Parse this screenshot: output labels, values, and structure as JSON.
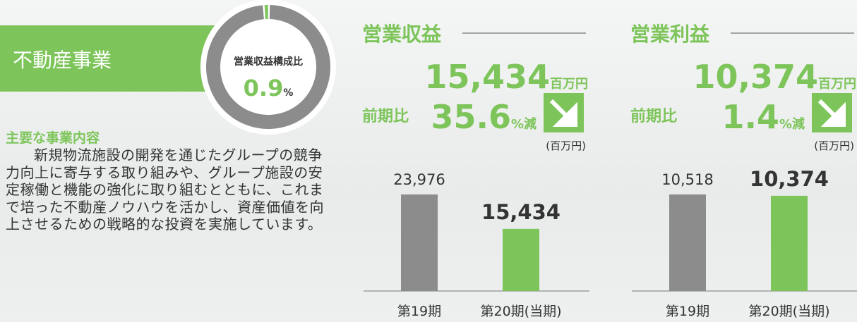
{
  "header": {
    "title": "不動産事業"
  },
  "donut": {
    "title": "営業収益構成比",
    "value": 0.9,
    "unit": "%",
    "color": "#7dc55a",
    "rest_color": "#8c8c8c"
  },
  "description": {
    "heading": "主要な事業内容",
    "text": "新規物流施設の開発を通じたグループの競争力向上に寄与する取り組みや、グループ施設の安定稼働と機能の強化に取り組むとともに、これまで培った不動産ノウハウを活かし、資産価値を向上させるための戦略的な投資を実施しています。"
  },
  "chart_data": [
    {
      "type": "bar",
      "title": "営業収益",
      "headline_unit": "百万円",
      "change_label": "前期比",
      "change": 35.6,
      "change_unit": "%減",
      "unit_label": "(百万円)",
      "categories": [
        "第19期",
        "第20期(当期)"
      ],
      "values": [
        23976,
        15434
      ],
      "value_labels": [
        "23,976",
        "15,434"
      ],
      "colors": [
        "#8c8c8c",
        "#7dc55a"
      ]
    },
    {
      "type": "bar",
      "title": "営業利益",
      "headline_unit": "百万円",
      "change_label": "前期比",
      "change": 1.4,
      "change_unit": "%減",
      "unit_label": "(百万円)",
      "categories": [
        "第19期",
        "第20期(当期)"
      ],
      "values": [
        10518,
        10374
      ],
      "value_labels": [
        "10,518",
        "10,374"
      ],
      "colors": [
        "#8c8c8c",
        "#7dc55a"
      ]
    }
  ]
}
